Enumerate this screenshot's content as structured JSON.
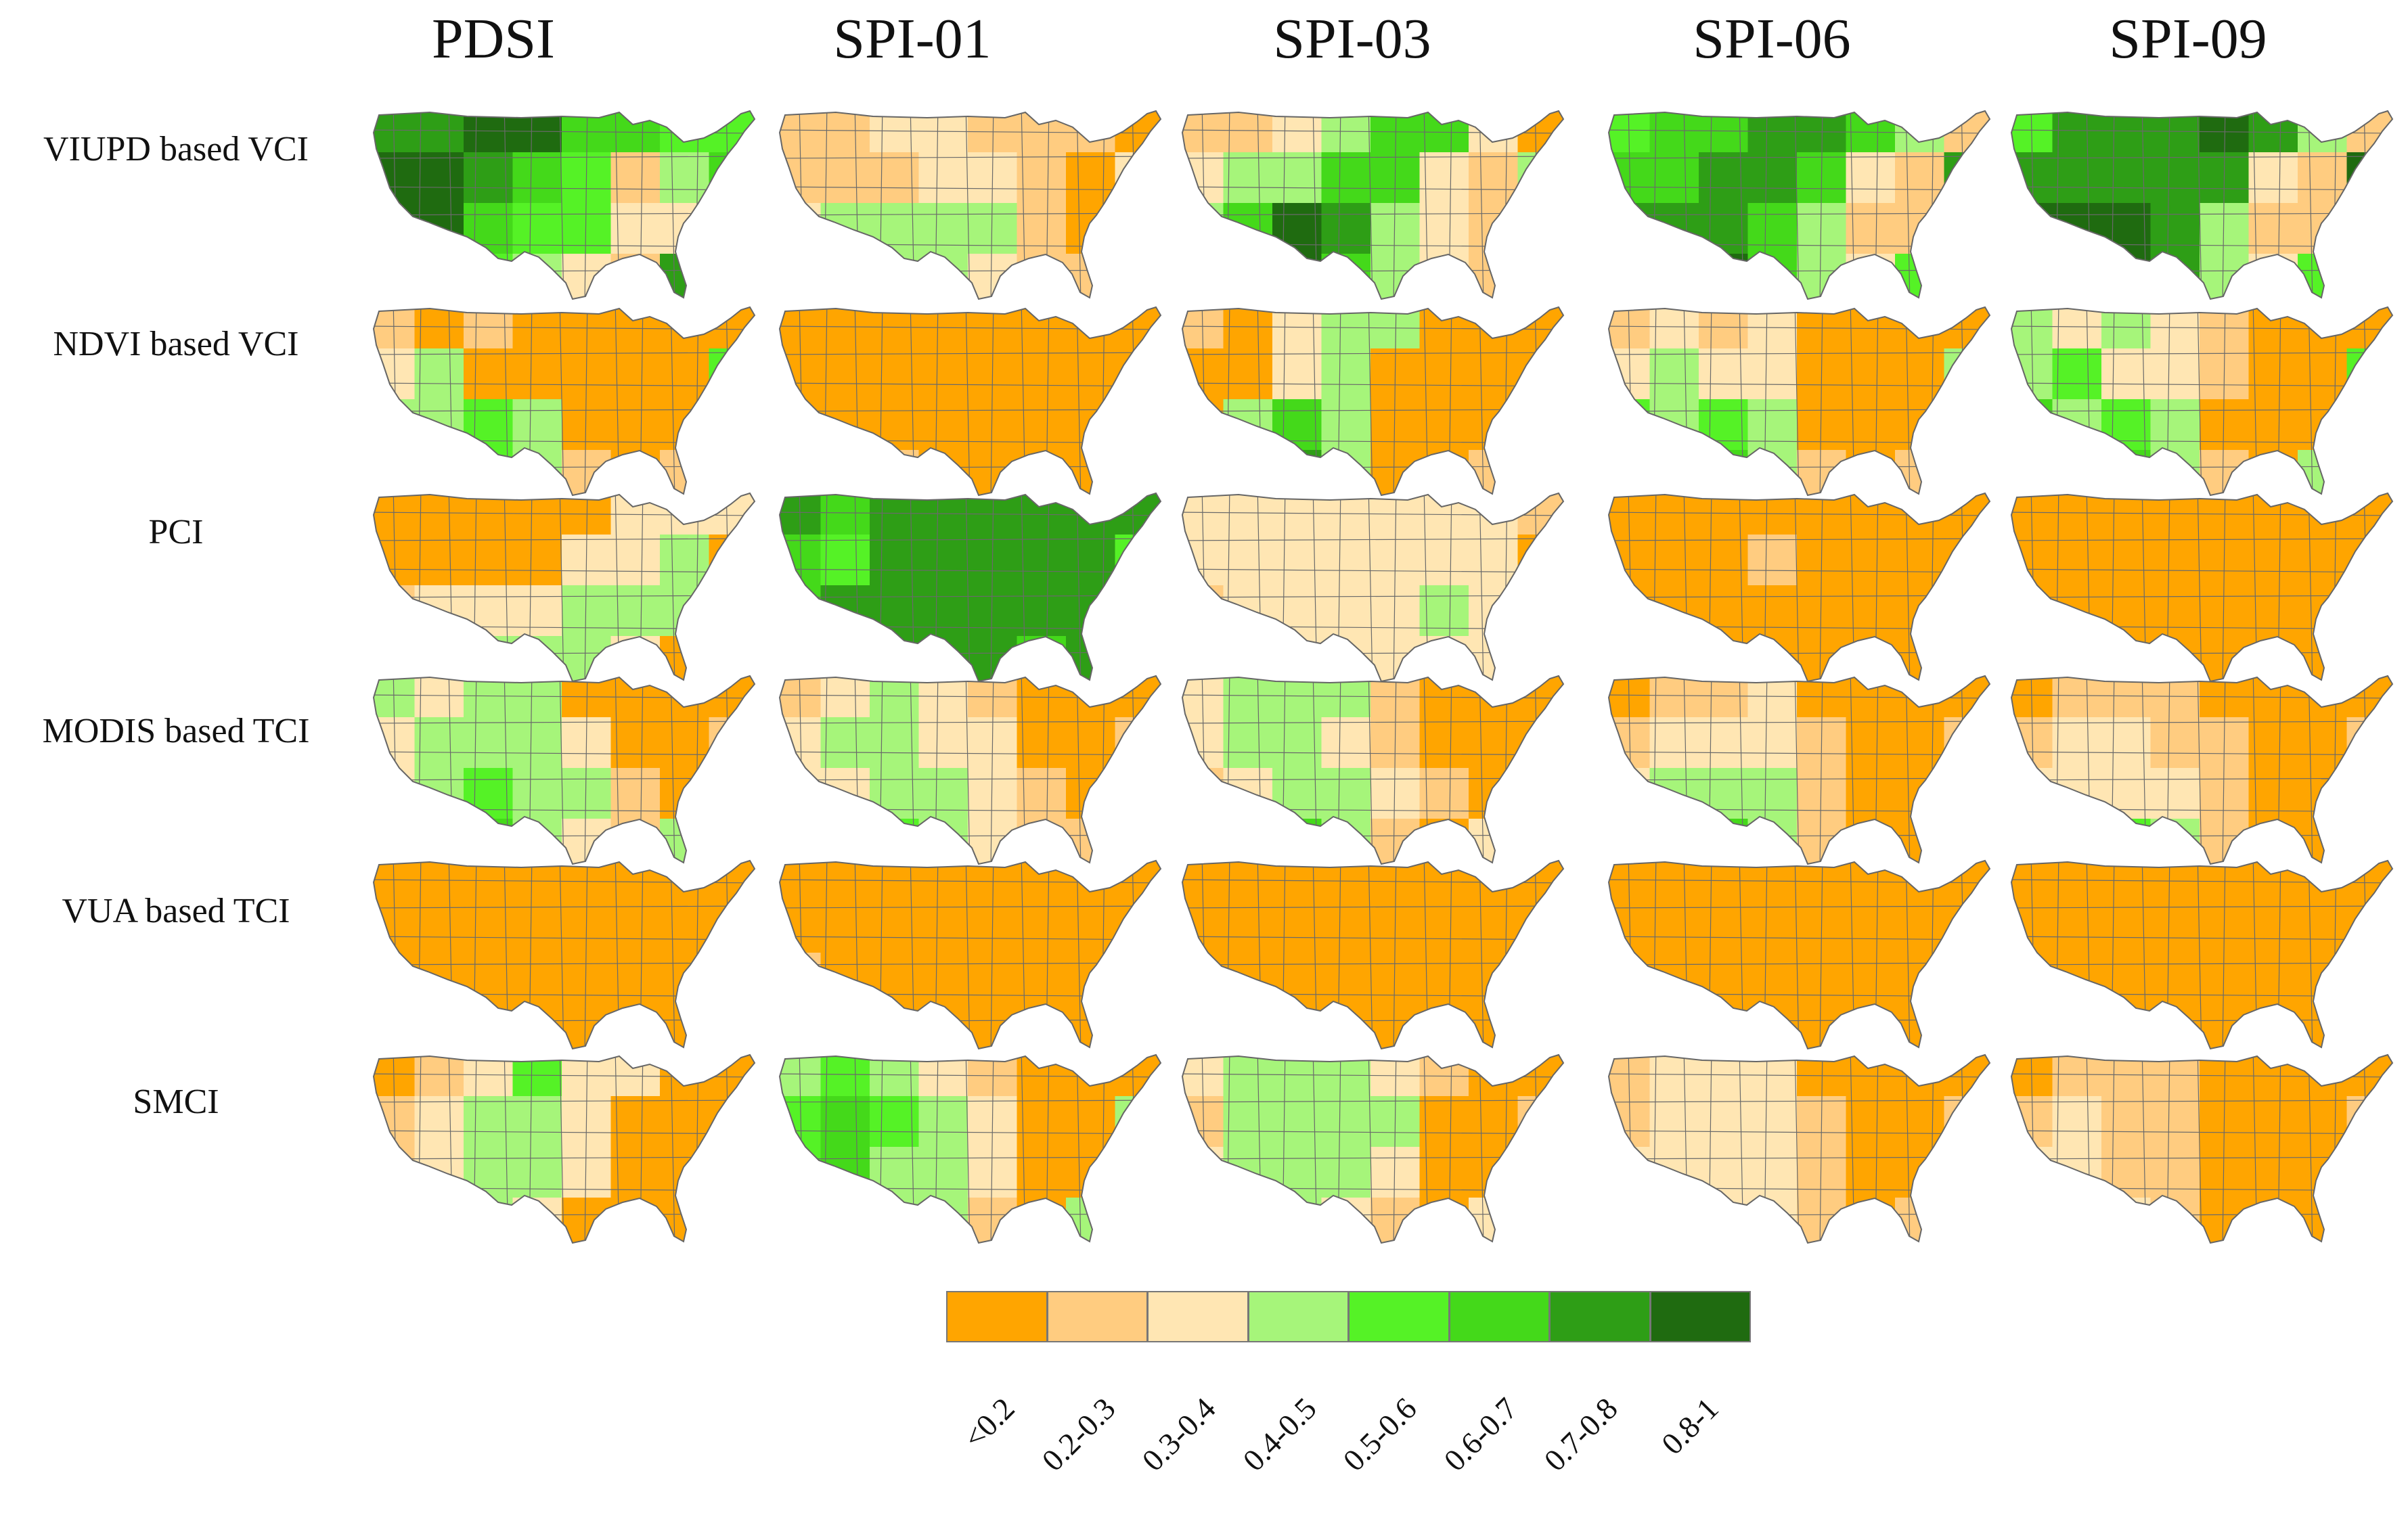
{
  "columns": [
    "PDSI",
    "SPI-01",
    "SPI-03",
    "SPI-06",
    "SPI-09"
  ],
  "rows": [
    "VIUPD based VCI",
    "NDVI based VCI",
    "PCI",
    "MODIS based TCI",
    "VUA based TCI",
    "SMCI"
  ],
  "legend": {
    "classes": [
      {
        "label": "<0.2",
        "color": "#FFA500"
      },
      {
        "label": "0.2-0.3",
        "color": "#FFCC80"
      },
      {
        "label": "0.3-0.4",
        "color": "#FFE6B3"
      },
      {
        "label": "0.4-0.5",
        "color": "#A6F57A"
      },
      {
        "label": "0.5-0.6",
        "color": "#55F226"
      },
      {
        "label": "0.6-0.7",
        "color": "#44D91A"
      },
      {
        "label": "0.7-0.8",
        "color": "#2E9E16"
      },
      {
        "label": "0.8-1",
        "color": "#1F6B10"
      }
    ]
  },
  "maps": [
    {
      "row": "VIUPD based VCI",
      "column": "PDSI",
      "region_classes": [
        6,
        6,
        7,
        7,
        5,
        5,
        4,
        4,
        7,
        7,
        6,
        5,
        4,
        1,
        3,
        5,
        7,
        7,
        5,
        4,
        4,
        2,
        2,
        6,
        7,
        7,
        4,
        3,
        2,
        1
      ]
    },
    {
      "row": "VIUPD based VCI",
      "column": "SPI-01",
      "region_classes": [
        1,
        1,
        2,
        2,
        1,
        1,
        1,
        0,
        1,
        1,
        1,
        2,
        2,
        1,
        0,
        2,
        2,
        3,
        3,
        3,
        3,
        1,
        0,
        2,
        2,
        3,
        3,
        3,
        2,
        1
      ]
    },
    {
      "row": "VIUPD based VCI",
      "column": "SPI-03",
      "region_classes": [
        1,
        1,
        2,
        3,
        5,
        5,
        2,
        0,
        2,
        3,
        3,
        5,
        5,
        2,
        1,
        3,
        3,
        5,
        7,
        6,
        3,
        2,
        1,
        3,
        4,
        7,
        7,
        5,
        3,
        2
      ]
    },
    {
      "row": "VIUPD based VCI",
      "column": "SPI-06",
      "region_classes": [
        4,
        5,
        5,
        6,
        6,
        5,
        3,
        1,
        5,
        5,
        6,
        6,
        5,
        2,
        1,
        6,
        6,
        6,
        6,
        5,
        3,
        1,
        1,
        4,
        6,
        7,
        7,
        5,
        3,
        2
      ]
    },
    {
      "row": "VIUPD based VCI",
      "column": "SPI-09",
      "region_classes": [
        4,
        6,
        6,
        6,
        7,
        6,
        3,
        1,
        6,
        6,
        6,
        6,
        6,
        2,
        1,
        7,
        7,
        7,
        7,
        6,
        3,
        1,
        1,
        5,
        7,
        7,
        7,
        6,
        3,
        2
      ]
    },
    {
      "row": "NDVI based VCI",
      "column": "PDSI",
      "region_classes": [
        1,
        0,
        1,
        0,
        0,
        0,
        0,
        0,
        2,
        3,
        0,
        0,
        0,
        0,
        0,
        4,
        3,
        3,
        4,
        3,
        0,
        0,
        0,
        4,
        5,
        4,
        4,
        3,
        1,
        0
      ]
    },
    {
      "row": "NDVI based VCI",
      "column": "SPI-01",
      "region_classes": [
        0,
        0,
        0,
        0,
        0,
        0,
        0,
        0,
        0,
        0,
        0,
        0,
        0,
        0,
        0,
        0,
        0,
        0,
        0,
        0,
        0,
        0,
        0,
        0,
        0,
        0,
        1,
        0,
        0,
        0
      ]
    },
    {
      "row": "NDVI based VCI",
      "column": "SPI-03",
      "region_classes": [
        1,
        0,
        2,
        3,
        3,
        0,
        0,
        0,
        0,
        0,
        2,
        3,
        0,
        0,
        0,
        0,
        0,
        3,
        5,
        3,
        0,
        0,
        0,
        1,
        2,
        6,
        6,
        3,
        0,
        0
      ]
    },
    {
      "row": "NDVI based VCI",
      "column": "SPI-06",
      "region_classes": [
        1,
        2,
        1,
        2,
        0,
        0,
        0,
        0,
        2,
        3,
        2,
        2,
        0,
        0,
        0,
        3,
        4,
        3,
        4,
        3,
        0,
        0,
        0,
        2,
        4,
        5,
        5,
        3,
        1,
        0
      ]
    },
    {
      "row": "NDVI based VCI",
      "column": "SPI-09",
      "region_classes": [
        3,
        2,
        3,
        2,
        1,
        0,
        0,
        0,
        3,
        4,
        2,
        2,
        1,
        0,
        0,
        4,
        5,
        3,
        4,
        3,
        0,
        0,
        0,
        3,
        5,
        5,
        5,
        3,
        1,
        0
      ]
    },
    {
      "row": "PCI",
      "column": "PDSI",
      "region_classes": [
        0,
        0,
        0,
        0,
        0,
        2,
        2,
        2,
        0,
        0,
        0,
        0,
        2,
        2,
        3,
        0,
        1,
        2,
        2,
        2,
        3,
        3,
        3,
        1,
        2,
        2,
        3,
        3,
        3,
        2
      ]
    },
    {
      "row": "PCI",
      "column": "SPI-01",
      "region_classes": [
        6,
        5,
        6,
        6,
        6,
        6,
        6,
        6,
        5,
        4,
        6,
        6,
        6,
        6,
        6,
        4,
        5,
        6,
        6,
        6,
        6,
        6,
        6,
        5,
        5,
        6,
        6,
        6,
        6,
        5
      ]
    },
    {
      "row": "PCI",
      "column": "SPI-03",
      "region_classes": [
        2,
        2,
        2,
        2,
        2,
        2,
        2,
        1,
        2,
        2,
        2,
        2,
        2,
        2,
        2,
        0,
        1,
        2,
        2,
        2,
        2,
        3,
        2,
        1,
        2,
        2,
        2,
        2,
        2,
        2
      ]
    },
    {
      "row": "PCI",
      "column": "SPI-06",
      "region_classes": [
        0,
        0,
        0,
        0,
        0,
        0,
        0,
        0,
        0,
        0,
        0,
        1,
        0,
        0,
        0,
        0,
        0,
        0,
        0,
        0,
        0,
        0,
        0,
        0,
        0,
        0,
        0,
        0,
        0,
        0
      ]
    },
    {
      "row": "PCI",
      "column": "SPI-09",
      "region_classes": [
        0,
        0,
        0,
        0,
        0,
        0,
        0,
        0,
        0,
        0,
        0,
        0,
        0,
        0,
        0,
        0,
        0,
        0,
        0,
        0,
        0,
        0,
        0,
        0,
        0,
        0,
        0,
        0,
        0,
        0
      ]
    },
    {
      "row": "MODIS based TCI",
      "column": "PDSI",
      "region_classes": [
        3,
        2,
        3,
        3,
        0,
        0,
        0,
        0,
        2,
        3,
        3,
        3,
        2,
        0,
        0,
        1,
        2,
        3,
        4,
        3,
        3,
        1,
        0,
        2,
        3,
        5,
        5,
        3,
        2,
        1
      ]
    },
    {
      "row": "MODIS based TCI",
      "column": "SPI-01",
      "region_classes": [
        1,
        2,
        3,
        2,
        1,
        0,
        0,
        0,
        2,
        3,
        3,
        2,
        2,
        0,
        0,
        1,
        2,
        2,
        3,
        3,
        2,
        1,
        0,
        1,
        2,
        4,
        4,
        3,
        2,
        1
      ]
    },
    {
      "row": "MODIS based TCI",
      "column": "SPI-03",
      "region_classes": [
        2,
        3,
        3,
        3,
        1,
        0,
        0,
        0,
        2,
        3,
        3,
        2,
        1,
        0,
        0,
        0,
        1,
        2,
        3,
        3,
        2,
        1,
        0,
        1,
        2,
        5,
        5,
        3,
        1,
        0
      ]
    },
    {
      "row": "MODIS based TCI",
      "column": "SPI-06",
      "region_classes": [
        0,
        1,
        1,
        2,
        0,
        0,
        0,
        0,
        1,
        2,
        2,
        2,
        1,
        0,
        0,
        1,
        2,
        3,
        3,
        3,
        1,
        0,
        0,
        1,
        2,
        4,
        5,
        3,
        1,
        0
      ]
    },
    {
      "row": "MODIS based TCI",
      "column": "SPI-09",
      "region_classes": [
        0,
        1,
        1,
        1,
        0,
        0,
        0,
        0,
        1,
        2,
        2,
        1,
        1,
        0,
        0,
        1,
        2,
        2,
        2,
        2,
        1,
        0,
        0,
        2,
        2,
        3,
        4,
        3,
        1,
        0
      ]
    },
    {
      "row": "VUA based TCI",
      "column": "PDSI",
      "region_classes": [
        0,
        0,
        0,
        0,
        0,
        0,
        0,
        0,
        0,
        0,
        0,
        0,
        0,
        0,
        0,
        0,
        0,
        0,
        0,
        0,
        0,
        0,
        0,
        0,
        0,
        0,
        0,
        0,
        0,
        0
      ]
    },
    {
      "row": "VUA based TCI",
      "column": "SPI-01",
      "region_classes": [
        0,
        0,
        0,
        0,
        0,
        0,
        0,
        0,
        0,
        0,
        0,
        0,
        0,
        0,
        0,
        0,
        1,
        0,
        0,
        0,
        0,
        0,
        0,
        1,
        0,
        0,
        0,
        0,
        0,
        0
      ]
    },
    {
      "row": "VUA based TCI",
      "column": "SPI-03",
      "region_classes": [
        0,
        0,
        0,
        0,
        0,
        0,
        0,
        0,
        0,
        0,
        0,
        0,
        0,
        0,
        0,
        0,
        0,
        0,
        0,
        0,
        0,
        0,
        0,
        0,
        0,
        0,
        0,
        0,
        0,
        0
      ]
    },
    {
      "row": "VUA based TCI",
      "column": "SPI-06",
      "region_classes": [
        0,
        0,
        0,
        0,
        0,
        0,
        0,
        0,
        0,
        0,
        0,
        0,
        0,
        0,
        0,
        0,
        0,
        0,
        0,
        0,
        0,
        0,
        0,
        0,
        0,
        0,
        0,
        0,
        0,
        0
      ]
    },
    {
      "row": "VUA based TCI",
      "column": "SPI-09",
      "region_classes": [
        0,
        0,
        0,
        0,
        0,
        0,
        0,
        0,
        0,
        0,
        0,
        0,
        0,
        0,
        0,
        0,
        0,
        0,
        0,
        0,
        0,
        0,
        0,
        0,
        0,
        0,
        0,
        0,
        0,
        0
      ]
    },
    {
      "row": "SMCI",
      "column": "PDSI",
      "region_classes": [
        0,
        1,
        2,
        4,
        2,
        2,
        0,
        0,
        1,
        2,
        3,
        3,
        2,
        0,
        0,
        0,
        1,
        2,
        3,
        3,
        2,
        0,
        0,
        1,
        2,
        3,
        3,
        2,
        0,
        0
      ]
    },
    {
      "row": "SMCI",
      "column": "SPI-01",
      "region_classes": [
        3,
        4,
        3,
        2,
        1,
        0,
        0,
        0,
        4,
        5,
        4,
        3,
        2,
        0,
        0,
        3,
        4,
        5,
        3,
        3,
        2,
        0,
        0,
        3,
        4,
        4,
        3,
        3,
        1,
        0
      ]
    },
    {
      "row": "SMCI",
      "column": "SPI-03",
      "region_classes": [
        2,
        3,
        3,
        3,
        2,
        1,
        0,
        0,
        1,
        3,
        3,
        3,
        3,
        0,
        0,
        1,
        2,
        3,
        3,
        3,
        2,
        0,
        0,
        2,
        3,
        3,
        3,
        2,
        1,
        0
      ]
    },
    {
      "row": "SMCI",
      "column": "SPI-06",
      "region_classes": [
        1,
        2,
        2,
        2,
        0,
        0,
        0,
        0,
        1,
        2,
        2,
        2,
        1,
        0,
        0,
        1,
        2,
        2,
        2,
        2,
        1,
        0,
        0,
        1,
        2,
        2,
        2,
        2,
        1,
        0
      ]
    },
    {
      "row": "SMCI",
      "column": "SPI-09",
      "region_classes": [
        0,
        1,
        1,
        1,
        0,
        0,
        0,
        0,
        1,
        2,
        1,
        1,
        0,
        0,
        0,
        1,
        2,
        2,
        1,
        1,
        0,
        0,
        0,
        1,
        1,
        2,
        2,
        1,
        0,
        0
      ]
    }
  ]
}
